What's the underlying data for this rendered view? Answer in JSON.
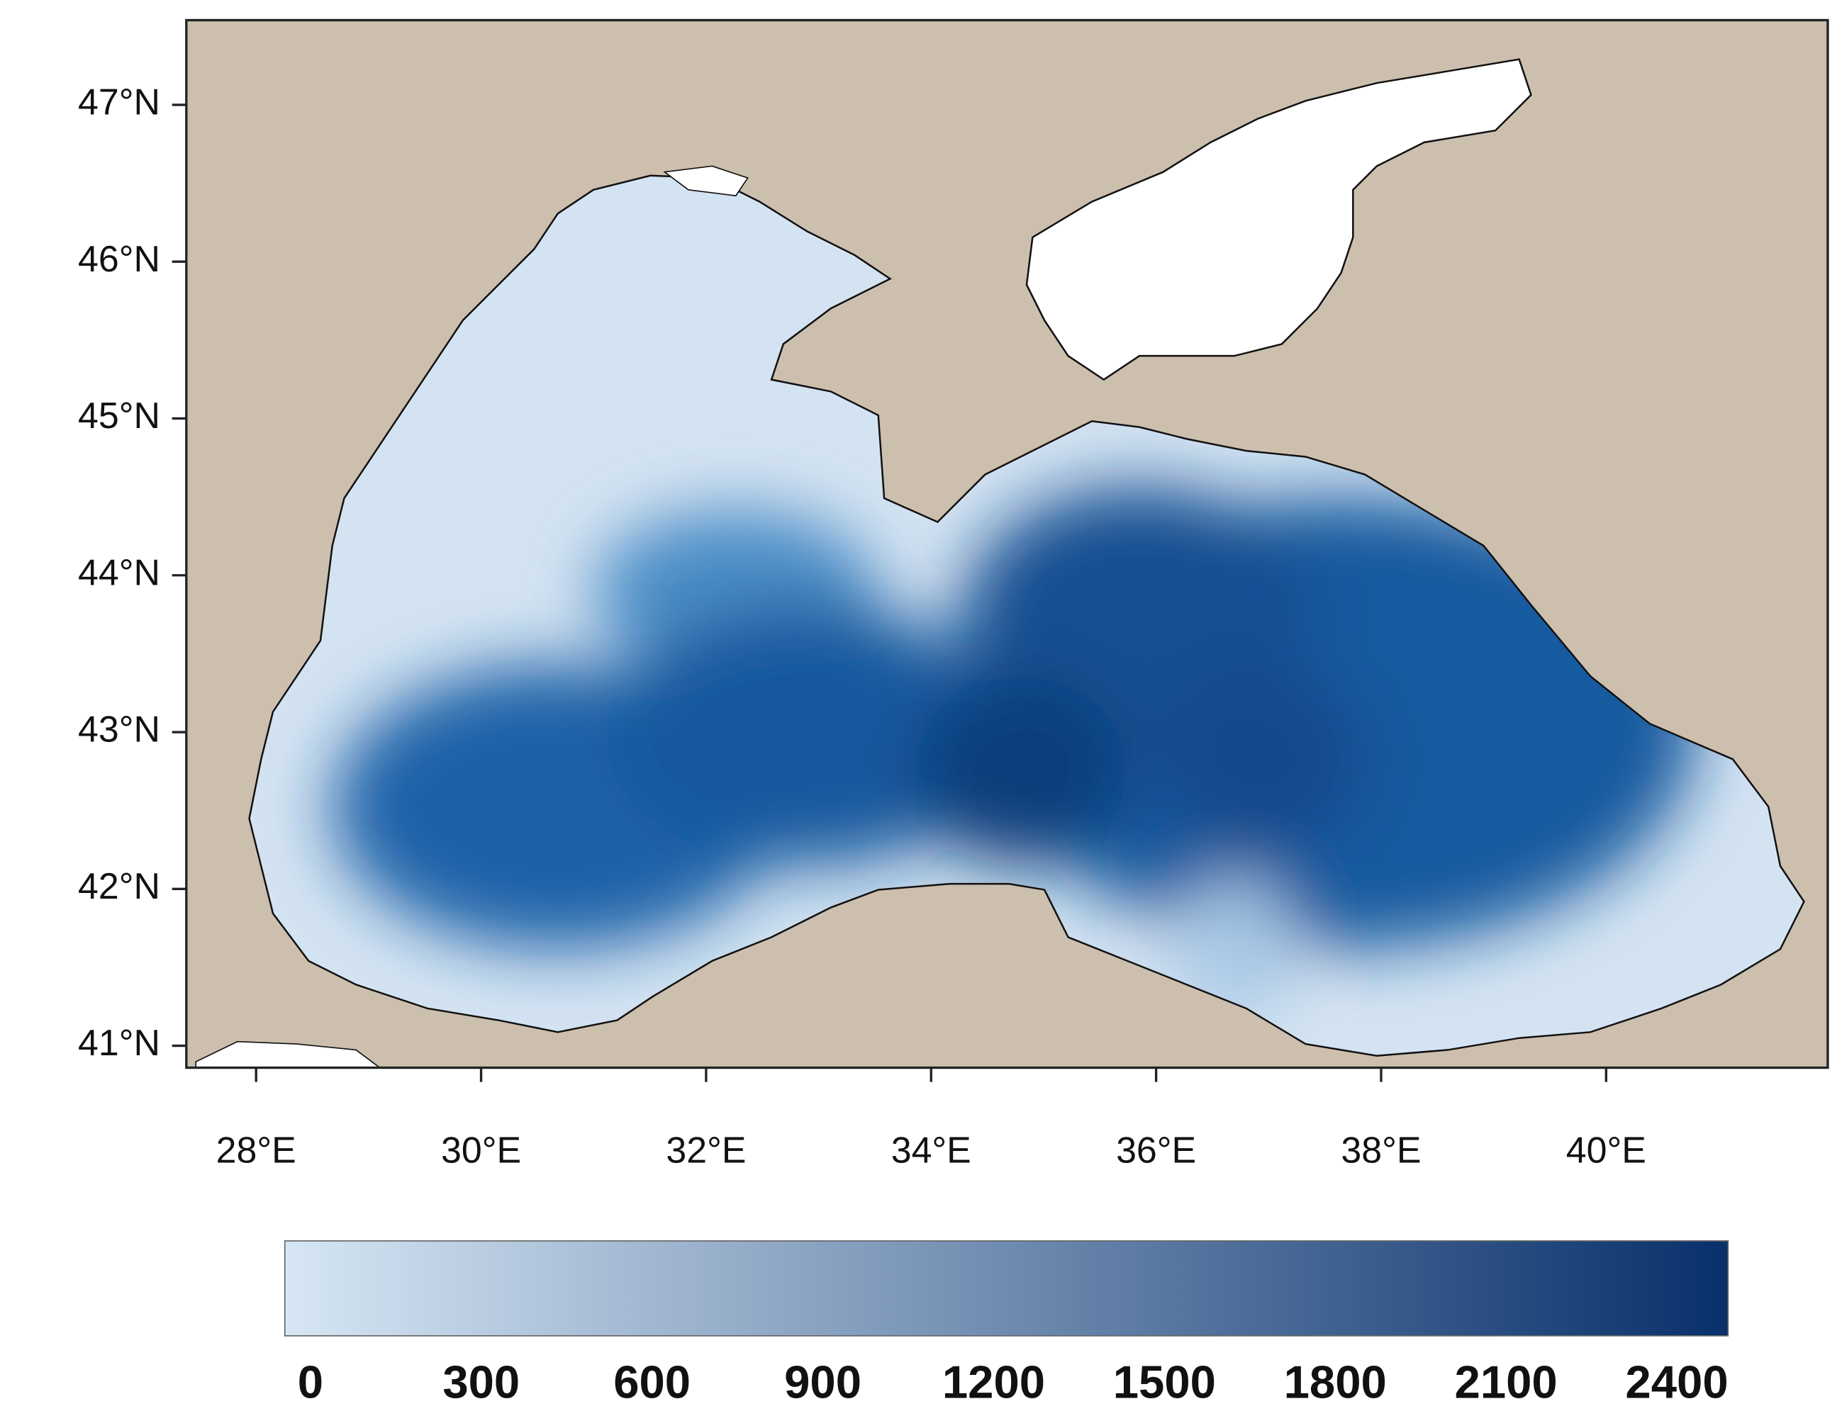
{
  "map": {
    "xlim": [
      27.38,
      41.97
    ],
    "ylim": [
      40.86,
      47.54
    ],
    "xticks": [
      {
        "value": 28,
        "label": "28°E"
      },
      {
        "value": 30,
        "label": "30°E"
      },
      {
        "value": 32,
        "label": "32°E"
      },
      {
        "value": 34,
        "label": "34°E"
      },
      {
        "value": 36,
        "label": "36°E"
      },
      {
        "value": 38,
        "label": "38°E"
      },
      {
        "value": 40,
        "label": "40°E"
      }
    ],
    "yticks": [
      {
        "value": 41,
        "label": "41°N"
      },
      {
        "value": 42,
        "label": "42°N"
      },
      {
        "value": 43,
        "label": "43°N"
      },
      {
        "value": 44,
        "label": "44°N"
      },
      {
        "value": 45,
        "label": "45°N"
      },
      {
        "value": 46,
        "label": "46°N"
      },
      {
        "value": 47,
        "label": "47°N"
      }
    ]
  },
  "colorbar": {
    "lim": [
      -45,
      2490
    ],
    "ticks": [
      0,
      300,
      600,
      900,
      1200,
      1500,
      1800,
      2100,
      2400
    ],
    "colors": [
      "#d6e6f4",
      "#08306b"
    ]
  }
}
